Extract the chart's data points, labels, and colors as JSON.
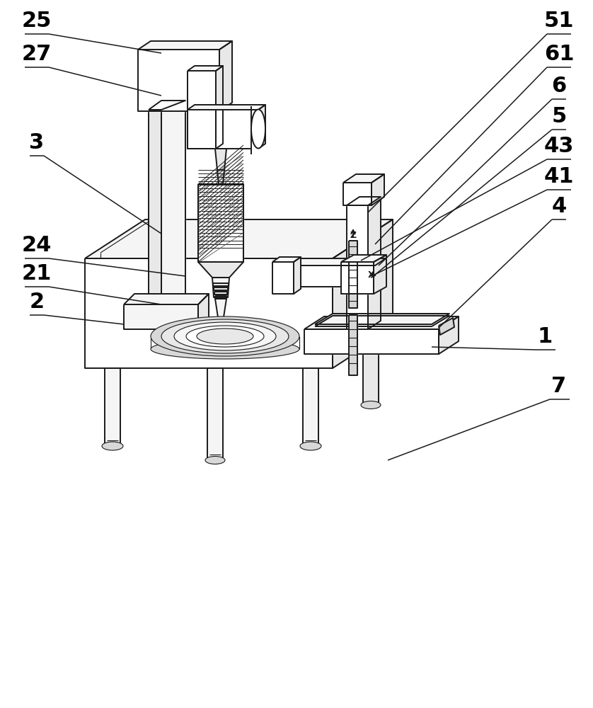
{
  "bg_color": "#ffffff",
  "line_color": "#1a1a1a",
  "fig_width": 8.38,
  "fig_height": 10.0,
  "dpi": 100,
  "font_size": 22,
  "label_font_size": 22,
  "lw_main": 1.4,
  "lw_thin": 0.8,
  "lw_label": 1.1,
  "fc_white": "#ffffff",
  "fc_light": "#f0f0f0",
  "fc_mid": "#e0e0e0",
  "fc_dark": "#d0d0d0",
  "fc_vdark": "#c0c0c0"
}
